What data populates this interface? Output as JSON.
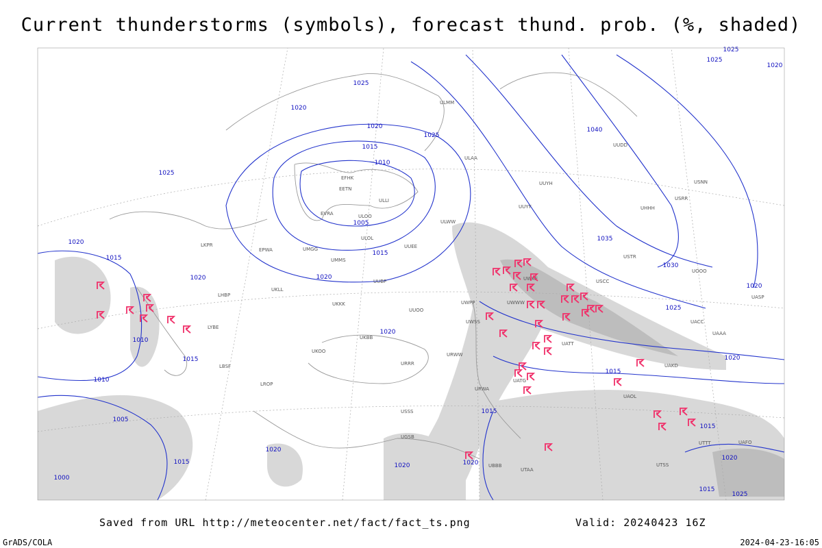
{
  "header": {
    "title": "Current thunderstorms (symbols), forecast thund. prob. (%, shaded)"
  },
  "footer": {
    "saved": "Saved from URL http://meteocenter.net/fact/fact_ts.png",
    "valid": "Valid: 20240423 16Z",
    "credit": "GrADS/COLA",
    "timestamp": "2024-04-23-16:05"
  },
  "isobar_labels": [
    "1025",
    "1020",
    "1020",
    "1025",
    "1015",
    "1010",
    "1005",
    "1015",
    "1020",
    "1025",
    "1020",
    "1015",
    "1020",
    "1010",
    "1015",
    "1010",
    "1005",
    "1000",
    "1015",
    "1020",
    "1020",
    "1020",
    "1015",
    "1015",
    "1020",
    "1025",
    "1030",
    "1035",
    "1040",
    "1020",
    "1025",
    "1025",
    "1020",
    "1015",
    "1020",
    "1015",
    "1025",
    "1020"
  ],
  "station_codes": [
    "ULLI",
    "ULOO",
    "ULOL",
    "EFHK",
    "EETN",
    "EVRA",
    "ULWW",
    "UUEE",
    "UMMS",
    "UMGG",
    "UUBP",
    "UKLL",
    "UKKK",
    "UKBB",
    "UUOO",
    "URRR",
    "URWW",
    "UWWW",
    "UWKE",
    "UWPP",
    "UWSS",
    "USSS",
    "USCC",
    "UACC",
    "UAAA",
    "UATT",
    "URWA",
    "UGSB",
    "UBBB",
    "UTAA",
    "UTSS",
    "UTTT",
    "UAFO",
    "USTR",
    "USNN",
    "USRR",
    "UOOO",
    "UUYY",
    "UUYH",
    "UHHH",
    "ULAA",
    "ULMM",
    "EPWA",
    "LKPR",
    "LHBP",
    "LYBE",
    "LBSF",
    "LROP",
    "UKOO",
    "UUDD",
    "UATG",
    "UAOL",
    "UAKD",
    "UASP"
  ]
}
